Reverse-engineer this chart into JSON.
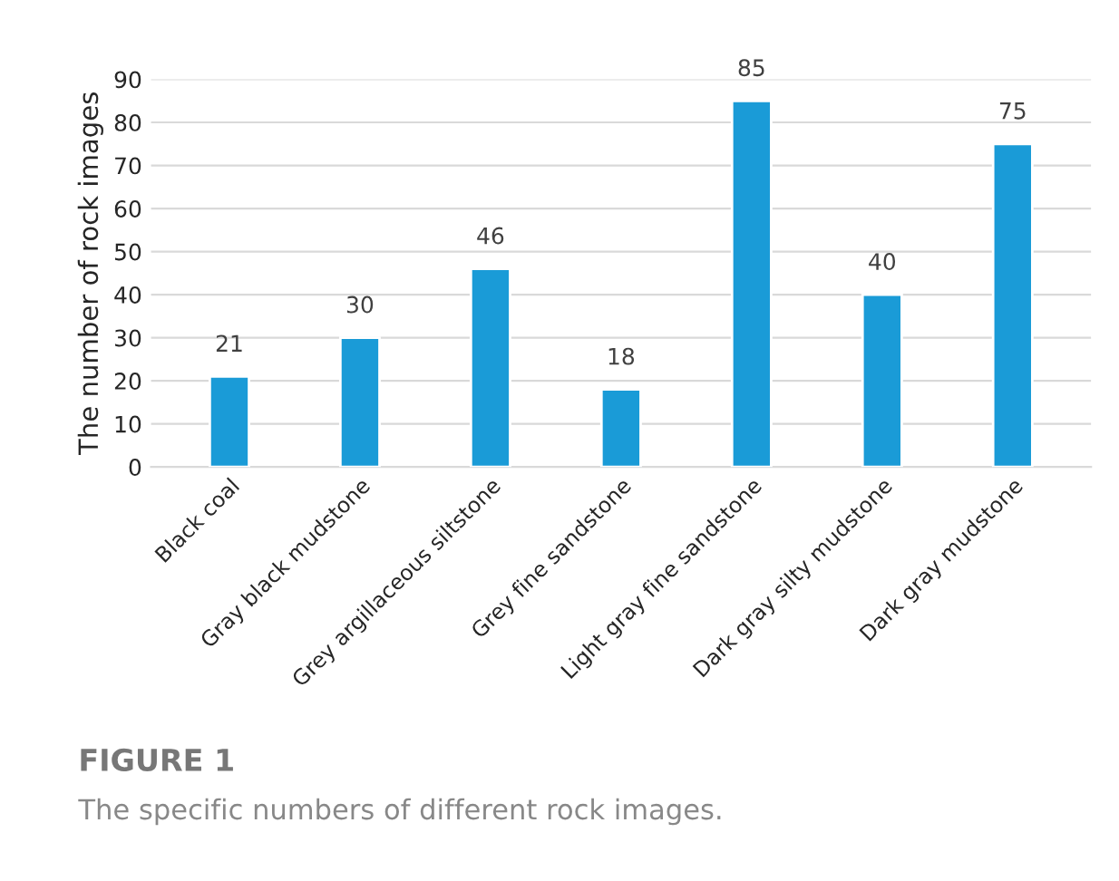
{
  "chart_data": {
    "type": "bar",
    "ylabel": "The number of rock images",
    "categories": [
      "Black coal",
      "Gray black mudstone",
      "Grey argillaceous siltstone",
      "Grey fine sandstone",
      "Light gray fine sandstone",
      "Dark gray silty mudstone",
      "Dark gray mudstone"
    ],
    "values": [
      21,
      30,
      46,
      18,
      85,
      40,
      75
    ],
    "color": "#1a9bd7",
    "ylim": [
      0,
      90
    ],
    "yticks": [
      0,
      10,
      20,
      30,
      40,
      50,
      60,
      70,
      80,
      90
    ],
    "grid": "y",
    "data_labels": true,
    "annotations": [
      "FIGURE 1",
      "The specific numbers of different rock images."
    ]
  }
}
